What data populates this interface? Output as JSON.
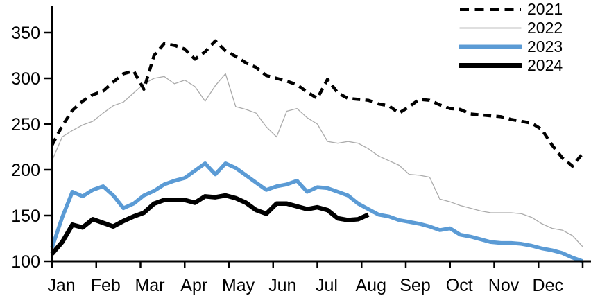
{
  "chart_data": {
    "type": "line",
    "title": "",
    "x_axis": {
      "labels": [
        "Jan",
        "Feb",
        "Mar",
        "Apr",
        "May",
        "Jun",
        "Jul",
        "Aug",
        "Sep",
        "Oct",
        "Nov",
        "Dec"
      ],
      "points_per_year": 53,
      "cadence": "weekly"
    },
    "y_axis": {
      "min": 100,
      "max": 380,
      "ticks": [
        350,
        300,
        250,
        200,
        150,
        100
      ],
      "grid": false
    },
    "legend": {
      "position": "top-right",
      "entries": [
        "2021",
        "2022",
        "2023",
        "2024"
      ]
    },
    "series": [
      {
        "name": "2022",
        "color": "#ABABAB",
        "line_style": "solid",
        "line_width": 1.3,
        "values": [
          210,
          236,
          243,
          249,
          253,
          262,
          270,
          274,
          284,
          294,
          300,
          302,
          294,
          298,
          291,
          275,
          292,
          305,
          269,
          266,
          262,
          247,
          236,
          264,
          267,
          257,
          250,
          231,
          229,
          231,
          229,
          223,
          215,
          210,
          205,
          195,
          194,
          192,
          168,
          165,
          161,
          158,
          155,
          153,
          153,
          153,
          152,
          148,
          141,
          136,
          134,
          128,
          116
        ]
      },
      {
        "name": "2021",
        "color": "#000000",
        "line_style": "dashed",
        "line_width": 4.5,
        "values": [
          227,
          248,
          265,
          275,
          282,
          286,
          296,
          305,
          308,
          288,
          325,
          338,
          336,
          332,
          321,
          329,
          341,
          330,
          324,
          317,
          312,
          303,
          300,
          297,
          293,
          285,
          278,
          299,
          284,
          278,
          277,
          276,
          272,
          270,
          262,
          269,
          277,
          276,
          271,
          267,
          266,
          261,
          260,
          259,
          258,
          255,
          253,
          251,
          244,
          227,
          213,
          204,
          218
        ]
      },
      {
        "name": "2023",
        "color": "#5B9BD5",
        "line_style": "solid",
        "line_width": 5.5,
        "values": [
          115,
          148,
          176,
          171,
          178,
          182,
          172,
          158,
          163,
          172,
          177,
          184,
          188,
          191,
          199,
          207,
          195,
          207,
          202,
          194,
          186,
          178,
          182,
          184,
          188,
          176,
          181,
          180,
          176,
          172,
          163,
          157,
          151,
          149,
          145,
          143,
          141,
          138,
          134,
          136,
          129,
          127,
          124,
          121,
          120,
          120,
          119,
          117,
          114,
          112,
          109,
          104,
          100
        ]
      },
      {
        "name": "2024",
        "color": "#000000",
        "line_style": "solid",
        "line_width": 6.5,
        "values": [
          108,
          121,
          140,
          137,
          146,
          142,
          138,
          144,
          149,
          153,
          163,
          167,
          167,
          167,
          164,
          171,
          170,
          172,
          169,
          164,
          156,
          152,
          163,
          163,
          160,
          157,
          159,
          156,
          147,
          145,
          146,
          151
        ]
      }
    ]
  },
  "legend_display_order": [
    "2021",
    "2022",
    "2023",
    "2024"
  ]
}
